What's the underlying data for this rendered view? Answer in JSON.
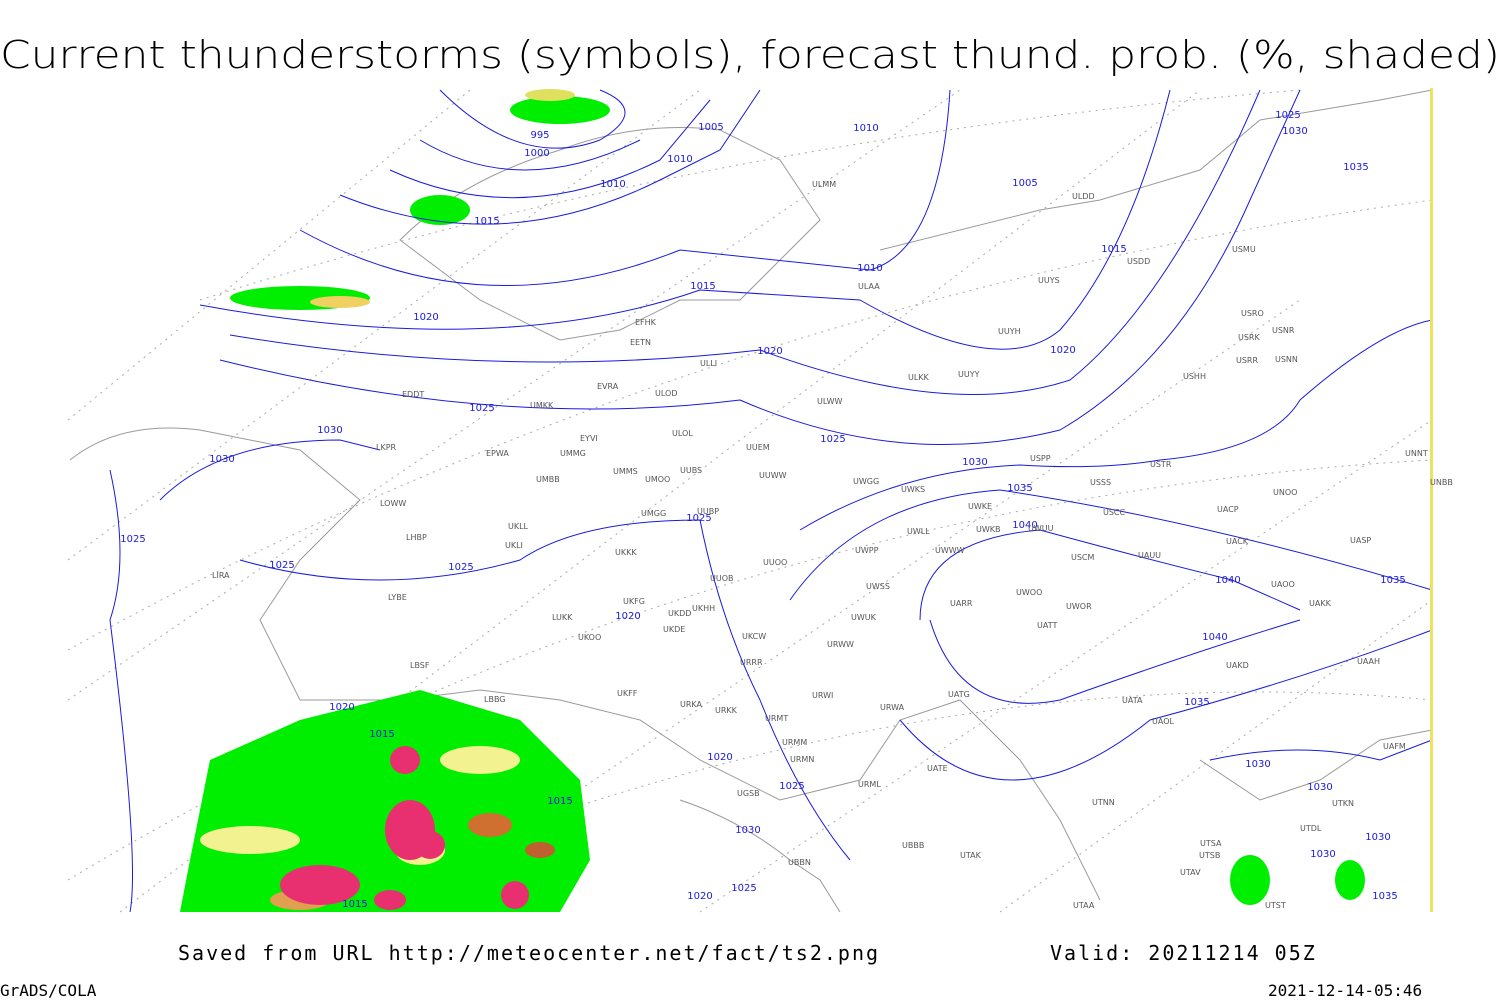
{
  "header": {
    "title": "Current thunderstorms (symbols), forecast thund. prob. (%, shaded)"
  },
  "map": {
    "isobar_labels": [
      995,
      1000,
      1005,
      1005,
      1010,
      1010,
      1010,
      1010,
      1015,
      1015,
      1015,
      1015,
      1015,
      1015,
      1020,
      1020,
      1020,
      1020,
      1020,
      1020,
      1020,
      1025,
      1025,
      1025,
      1025,
      1025,
      1025,
      1025,
      1025,
      1025,
      1030,
      1030,
      1030,
      1030,
      1030,
      1030,
      1030,
      1030,
      1030,
      1035,
      1035,
      1035,
      1035,
      1035,
      1040,
      1040,
      1040
    ],
    "stations": [
      "ULMM",
      "ULDD",
      "USDD",
      "USMU",
      "ULAA",
      "UUYS",
      "EFHK",
      "EETN",
      "UUYH",
      "USRO",
      "USRK",
      "USNR",
      "USRR",
      "USNN",
      "ULLI",
      "ULKK",
      "UUYY",
      "USHH",
      "EVRA",
      "UMKK",
      "EDDT",
      "ULOD",
      "ULWW",
      "ULOL",
      "EYVI",
      "UUEM",
      "LKPR",
      "EPWA",
      "UMMG",
      "USPP",
      "USTR",
      "UNNT",
      "UNBB",
      "UMMS",
      "UMOO",
      "UUBS",
      "UUWW",
      "UWGG",
      "UWKS",
      "USSS",
      "UNOO",
      "UMBB",
      "LOWW",
      "UWKE",
      "USCC",
      "UACP",
      "UMGG",
      "UUBP",
      "UKLL",
      "UWLL",
      "UWKB",
      "UWUU",
      "UACK",
      "UASP",
      "LHBP",
      "UKLI",
      "UKKK",
      "UWPP",
      "UWWW",
      "USCM",
      "UAUU",
      "UUOO",
      "LIRA",
      "UUOB",
      "UWSS",
      "UAOO",
      "LYBE",
      "UKFG",
      "UKDD",
      "UKHH",
      "UARR",
      "UWOO",
      "UWOR",
      "UAKK",
      "LUKK",
      "UWUK",
      "UATT",
      "UKOO",
      "UKDE",
      "UKCW",
      "URWW",
      "UAKD",
      "UAAH",
      "URRR",
      "LBSF",
      "UKFF",
      "URWI",
      "UATG",
      "UATA",
      "LBBG",
      "URKA",
      "URKK",
      "URWA",
      "UAOL",
      "URMT",
      "URMM",
      "URMN",
      "UATE",
      "URML",
      "UTNN",
      "UGSB",
      "UBBB",
      "UTAK",
      "UTSA",
      "UTSB",
      "UTAV",
      "UTAA",
      "UAFM",
      "UTDL",
      "UTST",
      "UBBN",
      "UTKN"
    ]
  },
  "footer": {
    "source": "Saved from URL http://meteocenter.net/fact/ts2.png",
    "valid": "Valid: 20211214 05Z",
    "software": "GrADS/COLA",
    "timestamp": "2021-12-14-05:46"
  }
}
